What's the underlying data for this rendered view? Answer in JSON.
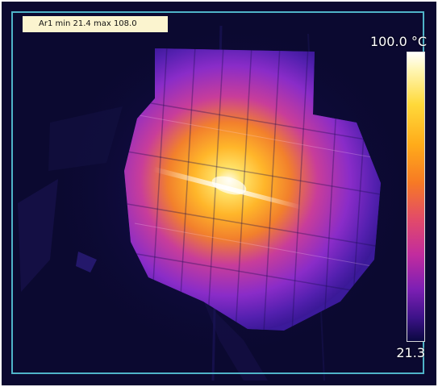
{
  "area_measurement": {
    "label": "Ar1 min 21.4 max 108.0"
  },
  "temperature_scale": {
    "max_label": "100.0 °C",
    "min_label": "21.3",
    "max_value": 100.0,
    "min_value": 21.3,
    "unit": "°C"
  },
  "colors": {
    "frame": "#4fb3c8",
    "background": "#0b0930",
    "label_background": "#fbf4cf",
    "palette": "iron"
  }
}
